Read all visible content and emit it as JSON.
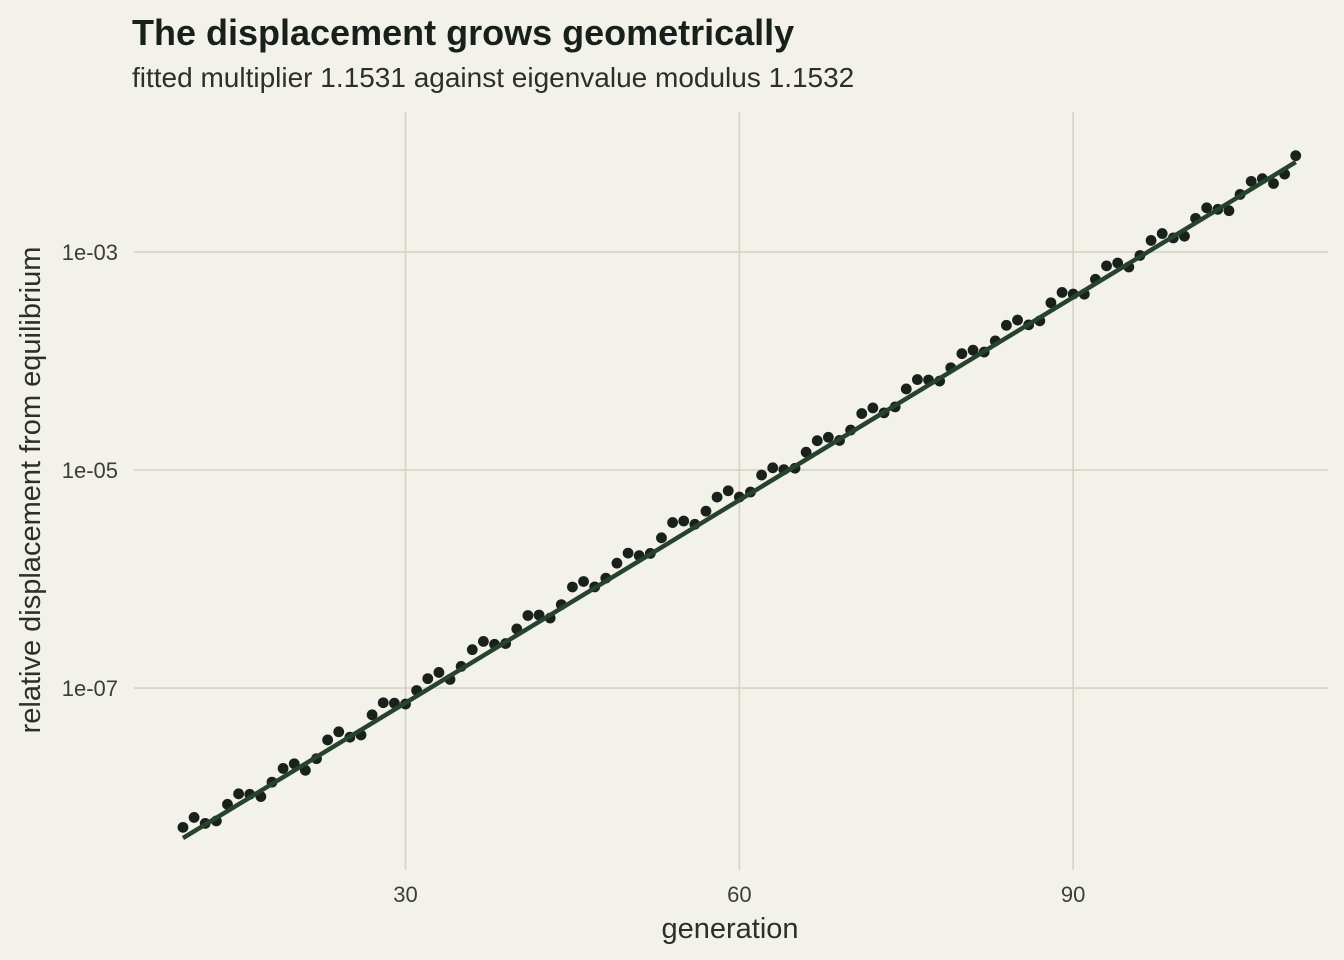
{
  "chart_data": {
    "type": "scatter",
    "title": "The displacement grows geometrically",
    "subtitle": "fitted multiplier 1.1531 against eigenvalue modulus 1.1532",
    "xlabel": "generation",
    "ylabel": "relative displacement from equilibrium",
    "y_scale": "log10",
    "xlim": [
      5.6,
      112.9
    ],
    "ylim": [
      2.14e-09,
      0.0193
    ],
    "x_ticks": [
      30,
      60,
      90
    ],
    "x_tick_labels": [
      "30",
      "60",
      "90"
    ],
    "y_ticks": [
      1e-07,
      1e-05,
      0.001
    ],
    "y_tick_labels": [
      "1e-07",
      "1e-05",
      "1e-03"
    ],
    "grid": true,
    "legend": "none",
    "fit_line": {
      "x": [
        10,
        110
      ],
      "y": [
        4.2e-09,
        0.0067
      ],
      "color": "#25432f"
    },
    "point_color": "#18211c",
    "grid_color": "#d3d4c3",
    "points": {
      "x": [
        10,
        11,
        12,
        13,
        14,
        15,
        16,
        17,
        18,
        19,
        20,
        21,
        22,
        23,
        24,
        25,
        26,
        27,
        28,
        29,
        30,
        31,
        32,
        33,
        34,
        35,
        36,
        37,
        38,
        39,
        40,
        41,
        42,
        43,
        44,
        45,
        46,
        47,
        48,
        49,
        50,
        51,
        52,
        53,
        54,
        55,
        56,
        57,
        58,
        59,
        60,
        61,
        62,
        63,
        64,
        65,
        66,
        67,
        68,
        69,
        70,
        71,
        72,
        73,
        74,
        75,
        76,
        77,
        78,
        79,
        80,
        81,
        82,
        83,
        84,
        85,
        86,
        87,
        88,
        89,
        90,
        91,
        92,
        93,
        94,
        95,
        96,
        97,
        98,
        99,
        100,
        101,
        102,
        103,
        104,
        105,
        106,
        107,
        108,
        109,
        110
      ],
      "y": [
        5.27e-09,
        6.5e-09,
        5.73e-09,
        6.04e-09,
        8.57e-09,
        1.07e-08,
        1.06e-08,
        1.01e-08,
        1.37e-08,
        1.83e-08,
        2.02e-08,
        1.76e-08,
        2.25e-08,
        3.34e-08,
        3.97e-08,
        3.54e-08,
        3.71e-08,
        5.68e-08,
        7.33e-08,
        7.27e-08,
        7.13e-08,
        9.5e-08,
        1.22e-07,
        1.39e-07,
        1.2e-07,
        1.58e-07,
        2.25e-07,
        2.68e-07,
        2.52e-07,
        2.56e-07,
        3.49e-07,
        4.63e-07,
        4.68e-07,
        4.39e-07,
        5.83e-07,
        8.46e-07,
        9.5e-07,
        8.47e-07,
        1.02e-06,
        1.4e-06,
        1.73e-06,
        1.64e-06,
        1.72e-06,
        2.39e-06,
        3.3e-06,
        3.41e-06,
        3.18e-06,
        4.2e-06,
        5.65e-06,
        6.46e-06,
        5.66e-06,
        6.29e-06,
        9e-06,
        1.05e-05,
        1.01e-05,
        1.04e-05,
        1.46e-05,
        1.86e-05,
        2e-05,
        1.87e-05,
        2.33e-05,
        3.3e-05,
        3.72e-05,
        3.35e-05,
        3.8e-05,
        5.55e-05,
        6.77e-05,
        6.71e-05,
        6.56e-05,
        8.69e-05,
        0.000117,
        0.000126,
        0.000121,
        0.000153,
        0.000213,
        0.000238,
        0.000215,
        0.000234,
        0.000343,
        0.000427,
        0.000412,
        0.000411,
        0.000563,
        0.000748,
        0.000795,
        0.00073,
        0.000931,
        0.00128,
        0.00148,
        0.00135,
        0.0014,
        0.00204,
        0.00255,
        0.00247,
        0.0024,
        0.00338,
        0.00446,
        0.00472,
        0.00426,
        0.0052,
        0.00767
      ]
    }
  }
}
